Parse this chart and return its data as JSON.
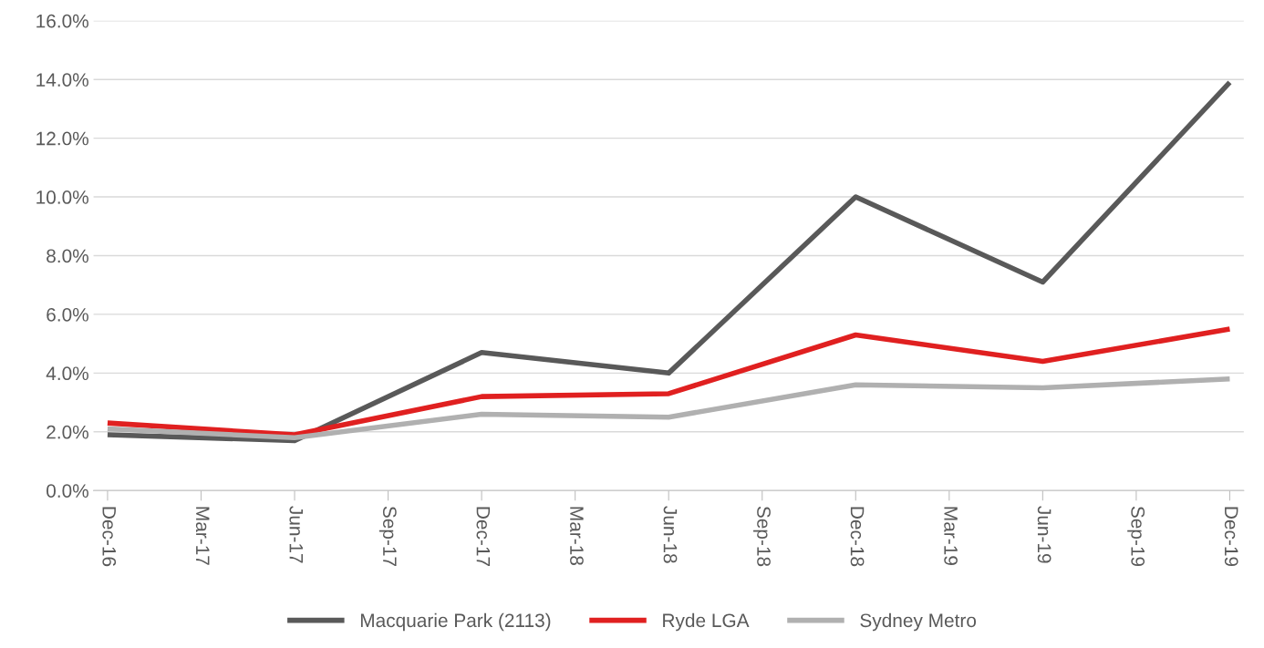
{
  "chart_data": {
    "type": "line",
    "categories": [
      "Dec-16",
      "Mar-17",
      "Jun-17",
      "Sep-17",
      "Dec-17",
      "Mar-18",
      "Jun-18",
      "Sep-18",
      "Dec-18",
      "Mar-19",
      "Jun-19",
      "Sep-19",
      "Dec-19"
    ],
    "series": [
      {
        "name": "Macquarie Park (2113)",
        "color": "#595959",
        "values": [
          1.9,
          null,
          1.7,
          null,
          4.7,
          null,
          4.0,
          null,
          10.0,
          null,
          7.1,
          null,
          13.9
        ]
      },
      {
        "name": "Ryde LGA",
        "color": "#e02020",
        "values": [
          2.3,
          null,
          1.9,
          null,
          3.2,
          null,
          3.3,
          null,
          5.3,
          null,
          4.4,
          null,
          5.5
        ]
      },
      {
        "name": "Sydney Metro",
        "color": "#b0b0b0",
        "values": [
          2.1,
          null,
          1.8,
          null,
          2.6,
          null,
          2.5,
          null,
          3.6,
          null,
          3.5,
          null,
          3.8
        ]
      }
    ],
    "ylim": [
      0,
      16
    ],
    "yticks": [
      {
        "value": 0,
        "label": "0.0%"
      },
      {
        "value": 2,
        "label": "2.0%"
      },
      {
        "value": 4,
        "label": "4.0%"
      },
      {
        "value": 6,
        "label": "6.0%"
      },
      {
        "value": 8,
        "label": "8.0%"
      },
      {
        "value": 10,
        "label": "10.0%"
      },
      {
        "value": 12,
        "label": "12.0%"
      },
      {
        "value": 14,
        "label": "14.0%"
      },
      {
        "value": 16,
        "label": "16.0%"
      }
    ],
    "grid": "y",
    "legend": "bottom",
    "marker": "none",
    "line_style": "solid"
  }
}
